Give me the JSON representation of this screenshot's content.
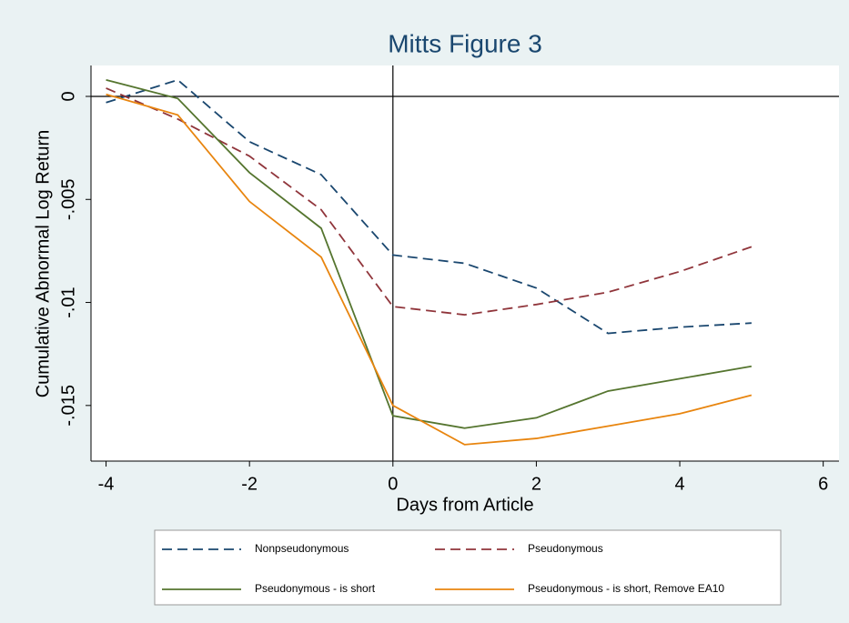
{
  "chart_data": {
    "type": "line",
    "title": "Mitts Figure 3",
    "x_label": "Days from Article",
    "y_label": "Cumulative Abnormal Log Return",
    "x": [
      -4,
      -3,
      -2,
      -1,
      0,
      1,
      2,
      3,
      4,
      5
    ],
    "series": [
      {
        "name": "Nonpseudonymous",
        "color": "#1a476f",
        "dash": true,
        "values": [
          -0.0003,
          0.0008,
          -0.0022,
          -0.0038,
          -0.0077,
          -0.0081,
          -0.0093,
          -0.0115,
          -0.0112,
          -0.011
        ]
      },
      {
        "name": "Pseudonymous",
        "color": "#90353b",
        "dash": true,
        "values": [
          0.0004,
          -0.0011,
          -0.0029,
          -0.0055,
          -0.0102,
          -0.0106,
          -0.0101,
          -0.0095,
          -0.0085,
          -0.0073
        ]
      },
      {
        "name": "Pseudonymous - is short",
        "color": "#55752f",
        "dash": false,
        "values": [
          0.0008,
          -0.0001,
          -0.0037,
          -0.0064,
          -0.0155,
          -0.0161,
          -0.0156,
          -0.0143,
          -0.0137,
          -0.0131
        ]
      },
      {
        "name": "Pseudonymous - is short, Remove EA10",
        "color": "#e8850f",
        "dash": false,
        "values": [
          0.0001,
          -0.0009,
          -0.0051,
          -0.0078,
          -0.015,
          -0.0169,
          -0.0166,
          -0.016,
          -0.0154,
          -0.0145
        ]
      }
    ],
    "xlim": [
      -4.21,
      6.22
    ],
    "ylim": [
      -0.0177,
      0.0015
    ],
    "xticks": [
      -4,
      -2,
      0,
      2,
      4,
      6
    ],
    "yticks": [
      0,
      {
        "value": -0.005,
        "label": "-.005"
      },
      {
        "value": -0.01,
        "label": "-.01"
      },
      {
        "value": -0.015,
        "label": "-.015"
      }
    ],
    "xline": 0,
    "yline": 0,
    "legend": "bottom"
  }
}
